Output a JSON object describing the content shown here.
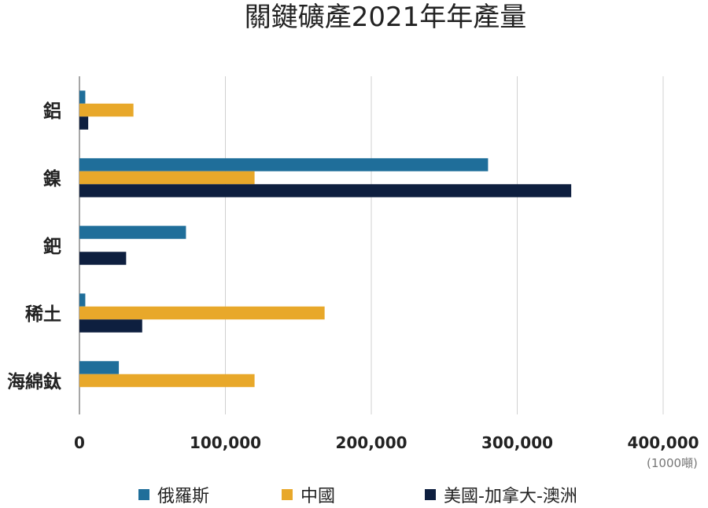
{
  "chart_data": {
    "type": "bar",
    "orientation": "horizontal",
    "title": "關鍵礦產2021年年產量",
    "unit": "(1000噸)",
    "categories": [
      "鋁",
      "鎳",
      "鈀",
      "稀土",
      "海綿鈦"
    ],
    "series": [
      {
        "name": "俄羅斯",
        "color": "#1f6e9a",
        "values": [
          4000,
          280000,
          73000,
          4000,
          27000
        ]
      },
      {
        "name": "中國",
        "color": "#e8a82a",
        "values": [
          37000,
          120000,
          null,
          168000,
          120000
        ]
      },
      {
        "name": "美國-加拿大-澳洲",
        "color": "#0e1f3f",
        "values": [
          6000,
          337000,
          32000,
          43000,
          null
        ]
      }
    ],
    "xlim": [
      0,
      400000
    ],
    "xticks": [
      0,
      100000,
      200000,
      300000,
      400000
    ],
    "xtick_labels": [
      "0",
      "100,000",
      "200,000",
      "300,000",
      "400,000"
    ],
    "grid": true,
    "legend_position": "bottom"
  }
}
